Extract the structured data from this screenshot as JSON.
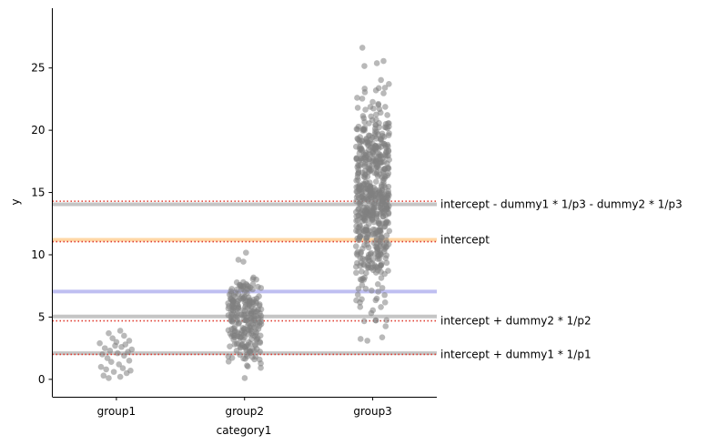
{
  "chart_data": {
    "type": "scatter",
    "title": "",
    "xlabel": "category1",
    "ylabel": "y",
    "categories": [
      "group1",
      "group2",
      "group3"
    ],
    "ylim": [
      -1.4,
      29.8
    ],
    "yticks": [
      0,
      5,
      10,
      15,
      20,
      25
    ],
    "grid": false,
    "point_color": "#808080",
    "series": [
      {
        "category": "group1",
        "y": [
          0.1,
          0.2,
          0.3,
          0.5,
          0.6,
          0.7,
          0.8,
          0.9,
          1.0,
          1.2,
          1.4,
          1.5,
          1.7,
          1.9,
          2.0,
          2.1,
          2.2,
          2.3,
          2.4,
          2.5,
          2.6,
          2.7,
          2.8,
          2.9,
          3.0,
          3.1,
          3.3,
          3.5,
          3.7,
          3.9
        ],
        "x_offset": [
          -0.06,
          0.03,
          -0.1,
          0.08,
          -0.02,
          0.11,
          -0.08,
          0.05,
          -0.12,
          0.02,
          -0.04,
          0.1,
          -0.07,
          0.06,
          -0.11,
          0.01,
          0.09,
          -0.05,
          0.12,
          -0.09,
          0.04,
          -0.01,
          0.07,
          -0.13,
          0.0,
          0.1,
          -0.03,
          0.06,
          -0.06,
          0.03
        ]
      }
    ],
    "reference_lines": [
      {
        "y": 14.05,
        "color": "#bfbfbf",
        "style": "solid",
        "label": "intercept - dummy1 * 1/p3 - dummy2 * 1/p3"
      },
      {
        "y": 14.3,
        "color": "#e03c31",
        "style": "dotted",
        "label": ""
      },
      {
        "y": 11.2,
        "color": "#ffd39b",
        "style": "solid",
        "label": "intercept"
      },
      {
        "y": 11.05,
        "color": "#e03c31",
        "style": "dotted",
        "label": ""
      },
      {
        "y": 7.05,
        "color": "#b8b8f0",
        "style": "solid",
        "label": ""
      },
      {
        "y": 5.05,
        "color": "#bfbfbf",
        "style": "solid",
        "label": ""
      },
      {
        "y": 4.7,
        "color": "#e03c31",
        "style": "dotted",
        "label": "intercept + dummy2 * 1/p2"
      },
      {
        "y": 2.1,
        "color": "#bfbfbf",
        "style": "solid",
        "label": ""
      },
      {
        "y": 2.0,
        "color": "#e03c31",
        "style": "dotted",
        "label": "intercept + dummy1 * 1/p1"
      }
    ]
  }
}
